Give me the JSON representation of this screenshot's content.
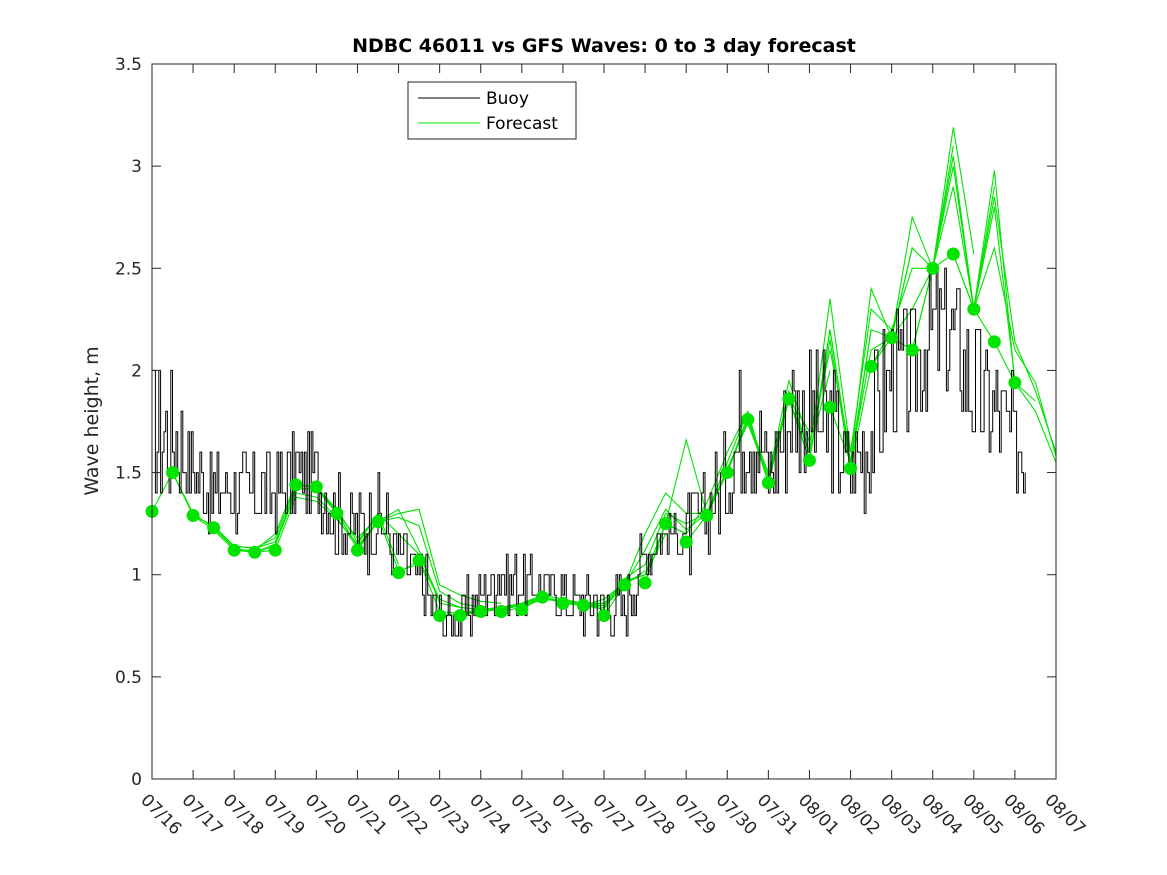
{
  "chart_data": {
    "type": "line",
    "title": "NDBC 46011 vs GFS Waves: 0 to 3 day forecast",
    "ylabel": "Wave height, m",
    "xlabel": "",
    "xlim": [
      "07/16",
      "08/07"
    ],
    "ylim": [
      0,
      3.5
    ],
    "x_tick_labels": [
      "07/16",
      "07/17",
      "07/18",
      "07/19",
      "07/20",
      "07/21",
      "07/22",
      "07/23",
      "07/24",
      "07/25",
      "07/26",
      "07/27",
      "07/28",
      "07/29",
      "07/30",
      "07/31",
      "08/01",
      "08/02",
      "08/03",
      "08/04",
      "08/05",
      "08/06",
      "08/07"
    ],
    "y_tick_labels": [
      "0",
      "0.5",
      "1",
      "1.5",
      "2",
      "2.5",
      "3",
      "3.5"
    ],
    "y_ticks": [
      0,
      0.5,
      1,
      1.5,
      2,
      2.5,
      3,
      3.5
    ],
    "grid": false,
    "legend_position": "top-left",
    "colors": {
      "buoy": "#000000",
      "forecast": "#00e400",
      "marker": "#00e400"
    },
    "legend": [
      {
        "label": "Buoy",
        "color": "#000000"
      },
      {
        "label": "Forecast",
        "color": "#00e400"
      }
    ],
    "buoy": {
      "x": [
        "07/16 00:00",
        "07/16 12:00",
        "07/17 00:00",
        "07/17 12:00",
        "07/18 00:00",
        "07/18 12:00",
        "07/19 00:00",
        "07/19 12:00",
        "07/20 00:00",
        "07/20 12:00",
        "07/21 00:00",
        "07/21 12:00",
        "07/22 00:00",
        "07/22 12:00",
        "07/23 00:00",
        "07/23 12:00",
        "07/24 00:00",
        "07/24 12:00",
        "07/25 00:00",
        "07/25 12:00",
        "07/26 00:00",
        "07/26 12:00",
        "07/27 00:00",
        "07/27 12:00",
        "07/28 00:00",
        "07/28 12:00",
        "07/29 00:00",
        "07/29 12:00",
        "07/30 00:00",
        "07/30 12:00",
        "07/31 00:00",
        "07/31 12:00",
        "08/01 00:00",
        "08/01 12:00",
        "08/02 00:00",
        "08/02 12:00",
        "08/03 00:00",
        "08/03 12:00",
        "08/04 00:00",
        "08/04 12:00",
        "08/05 00:00",
        "08/05 12:00",
        "08/06 00:00",
        "08/06 06:00"
      ],
      "values": [
        1.7,
        1.7,
        1.5,
        1.4,
        1.4,
        1.4,
        1.4,
        1.5,
        1.5,
        1.3,
        1.2,
        1.3,
        1.1,
        1.0,
        0.8,
        0.8,
        0.9,
        1.0,
        0.95,
        0.95,
        0.9,
        0.85,
        0.85,
        0.85,
        1.1,
        1.2,
        1.2,
        1.3,
        1.5,
        1.8,
        1.5,
        1.8,
        1.8,
        1.7,
        1.5,
        1.7,
        2.0,
        2.0,
        2.2,
        2.2,
        1.9,
        1.8,
        1.6,
        1.6
      ]
    },
    "forecast_series": [
      {
        "x": [
          "07/16 00:00",
          "07/16 12:00",
          "07/17 00:00",
          "07/17 12:00",
          "07/18 00:00",
          "07/18 12:00",
          "07/19 00:00"
        ],
        "values": [
          1.31,
          1.5,
          1.29,
          1.22,
          1.12,
          1.11,
          1.12
        ]
      },
      {
        "x": [
          "07/16 12:00",
          "07/17 00:00",
          "07/17 12:00",
          "07/18 00:00",
          "07/18 12:00",
          "07/19 00:00",
          "07/19 12:00"
        ],
        "values": [
          1.5,
          1.3,
          1.23,
          1.13,
          1.11,
          1.14,
          1.43
        ]
      },
      {
        "x": [
          "07/17 00:00",
          "07/17 12:00",
          "07/18 00:00",
          "07/18 12:00",
          "07/19 00:00",
          "07/19 12:00",
          "07/20 00:00"
        ],
        "values": [
          1.29,
          1.24,
          1.14,
          1.13,
          1.16,
          1.42,
          1.42
        ]
      },
      {
        "x": [
          "07/17 12:00",
          "07/18 00:00",
          "07/18 12:00",
          "07/19 00:00",
          "07/19 12:00",
          "07/20 00:00",
          "07/20 12:00"
        ],
        "values": [
          1.23,
          1.14,
          1.13,
          1.18,
          1.44,
          1.43,
          1.31
        ]
      },
      {
        "x": [
          "07/18 00:00",
          "07/18 12:00",
          "07/19 00:00",
          "07/19 12:00",
          "07/20 00:00",
          "07/20 12:00",
          "07/21 00:00"
        ],
        "values": [
          1.12,
          1.12,
          1.2,
          1.45,
          1.42,
          1.3,
          1.14
        ]
      },
      {
        "x": [
          "07/18 12:00",
          "07/19 00:00",
          "07/19 12:00",
          "07/20 00:00",
          "07/20 12:00",
          "07/21 00:00",
          "07/21 12:00"
        ],
        "values": [
          1.11,
          1.15,
          1.4,
          1.38,
          1.28,
          1.13,
          1.27
        ]
      },
      {
        "x": [
          "07/19 00:00",
          "07/19 12:00",
          "07/20 00:00",
          "07/20 12:00",
          "07/21 00:00",
          "07/21 12:00",
          "07/22 00:00"
        ],
        "values": [
          1.12,
          1.38,
          1.36,
          1.27,
          1.15,
          1.3,
          1.05
        ]
      },
      {
        "x": [
          "07/19 12:00",
          "07/20 00:00",
          "07/20 12:00",
          "07/21 00:00",
          "07/21 12:00",
          "07/22 00:00",
          "07/22 12:00"
        ],
        "values": [
          1.44,
          1.43,
          1.3,
          1.18,
          1.28,
          1.02,
          1.05
        ]
      },
      {
        "x": [
          "07/20 00:00",
          "07/20 12:00",
          "07/21 00:00",
          "07/21 12:00",
          "07/22 00:00",
          "07/22 12:00",
          "07/23 00:00"
        ],
        "values": [
          1.43,
          1.32,
          1.16,
          1.3,
          1.2,
          1.1,
          0.88
        ]
      },
      {
        "x": [
          "07/20 12:00",
          "07/21 00:00",
          "07/21 12:00",
          "07/22 00:00",
          "07/22 12:00",
          "07/23 00:00",
          "07/23 12:00"
        ],
        "values": [
          1.3,
          1.14,
          1.26,
          1.32,
          1.12,
          0.86,
          0.84
        ]
      },
      {
        "x": [
          "07/21 00:00",
          "07/21 12:00",
          "07/22 00:00",
          "07/22 12:00",
          "07/23 00:00",
          "07/23 12:00",
          "07/24 00:00"
        ],
        "values": [
          1.12,
          1.26,
          1.28,
          1.24,
          0.92,
          0.86,
          0.84
        ]
      },
      {
        "x": [
          "07/21 12:00",
          "07/22 00:00",
          "07/22 12:00",
          "07/23 00:00",
          "07/23 12:00",
          "07/24 00:00",
          "07/24 12:00"
        ],
        "values": [
          1.26,
          1.3,
          1.32,
          0.95,
          0.9,
          0.87,
          0.86
        ]
      },
      {
        "x": [
          "07/22 00:00",
          "07/22 12:00",
          "07/23 00:00",
          "07/23 12:00",
          "07/24 00:00",
          "07/24 12:00",
          "07/25 00:00"
        ],
        "values": [
          1.01,
          1.07,
          0.88,
          0.84,
          0.83,
          0.84,
          0.85
        ]
      },
      {
        "x": [
          "07/22 12:00",
          "07/23 00:00",
          "07/23 12:00",
          "07/24 00:00",
          "07/24 12:00",
          "07/25 00:00",
          "07/25 12:00"
        ],
        "values": [
          1.07,
          0.82,
          0.81,
          0.82,
          0.83,
          0.85,
          0.88
        ]
      },
      {
        "x": [
          "07/23 00:00",
          "07/23 12:00",
          "07/24 00:00",
          "07/24 12:00",
          "07/25 00:00",
          "07/25 12:00",
          "07/26 00:00"
        ],
        "values": [
          0.8,
          0.81,
          0.83,
          0.84,
          0.86,
          0.89,
          0.87
        ]
      },
      {
        "x": [
          "07/23 12:00",
          "07/24 00:00",
          "07/24 12:00",
          "07/25 00:00",
          "07/25 12:00",
          "07/26 00:00",
          "07/26 12:00"
        ],
        "values": [
          0.8,
          0.82,
          0.84,
          0.86,
          0.9,
          0.88,
          0.86
        ]
      },
      {
        "x": [
          "07/24 00:00",
          "07/24 12:00",
          "07/25 00:00",
          "07/25 12:00",
          "07/26 00:00",
          "07/26 12:00",
          "07/27 00:00"
        ],
        "values": [
          0.82,
          0.83,
          0.85,
          0.89,
          0.87,
          0.86,
          0.86
        ]
      },
      {
        "x": [
          "07/24 12:00",
          "07/25 00:00",
          "07/25 12:00",
          "07/26 00:00",
          "07/26 12:00",
          "07/27 00:00",
          "07/27 12:00"
        ],
        "values": [
          0.82,
          0.84,
          0.88,
          0.87,
          0.85,
          0.88,
          0.96
        ]
      },
      {
        "x": [
          "07/25 00:00",
          "07/25 12:00",
          "07/26 00:00",
          "07/26 12:00",
          "07/27 00:00",
          "07/27 12:00",
          "07/28 00:00"
        ],
        "values": [
          0.83,
          0.89,
          0.87,
          0.85,
          0.84,
          0.95,
          1.02
        ]
      },
      {
        "x": [
          "07/25 12:00",
          "07/26 00:00",
          "07/26 12:00",
          "07/27 00:00",
          "07/27 12:00",
          "07/28 00:00",
          "07/28 12:00"
        ],
        "values": [
          0.89,
          0.86,
          0.85,
          0.86,
          0.97,
          1.0,
          1.2
        ]
      },
      {
        "x": [
          "07/26 00:00",
          "07/26 12:00",
          "07/27 00:00",
          "07/27 12:00",
          "07/28 00:00",
          "07/28 12:00",
          "07/29 00:00"
        ],
        "values": [
          0.86,
          0.85,
          0.85,
          0.96,
          1.0,
          1.25,
          1.2
        ]
      },
      {
        "x": [
          "07/26 12:00",
          "07/27 00:00",
          "07/27 12:00",
          "07/28 00:00",
          "07/28 12:00",
          "07/29 00:00",
          "07/29 12:00"
        ],
        "values": [
          0.85,
          0.83,
          0.98,
          1.05,
          1.3,
          1.25,
          1.3
        ]
      },
      {
        "x": [
          "07/27 00:00",
          "07/27 12:00",
          "07/28 00:00",
          "07/28 12:00",
          "07/29 00:00",
          "07/29 12:00",
          "07/30 00:00"
        ],
        "values": [
          0.8,
          0.95,
          1.12,
          1.32,
          1.22,
          1.3,
          1.5
        ]
      },
      {
        "x": [
          "07/27 12:00",
          "07/28 00:00",
          "07/28 12:00",
          "07/29 00:00",
          "07/29 12:00",
          "07/30 00:00",
          "07/30 12:00"
        ],
        "values": [
          0.95,
          1.2,
          1.4,
          1.3,
          1.3,
          1.55,
          1.8
        ]
      },
      {
        "x": [
          "07/28 00:00",
          "07/28 12:00",
          "07/29 00:00",
          "07/29 12:00",
          "07/30 00:00",
          "07/30 12:00",
          "07/31 00:00"
        ],
        "values": [
          0.96,
          1.25,
          1.66,
          1.3,
          1.5,
          1.76,
          1.5
        ]
      },
      {
        "x": [
          "07/28 12:00",
          "07/29 00:00",
          "07/29 12:00",
          "07/30 00:00",
          "07/30 12:00",
          "07/31 00:00",
          "07/31 12:00"
        ],
        "values": [
          1.25,
          1.2,
          1.35,
          1.6,
          1.8,
          1.45,
          1.9
        ]
      },
      {
        "x": [
          "07/29 00:00",
          "07/29 12:00",
          "07/30 00:00",
          "07/30 12:00",
          "07/31 00:00",
          "07/31 12:00",
          "08/01 00:00"
        ],
        "values": [
          1.16,
          1.29,
          1.52,
          1.74,
          1.48,
          1.86,
          1.7
        ]
      },
      {
        "x": [
          "07/29 12:00",
          "07/30 00:00",
          "07/30 12:00",
          "07/31 00:00",
          "07/31 12:00",
          "08/01 00:00",
          "08/01 12:00"
        ],
        "values": [
          1.29,
          1.5,
          1.78,
          1.45,
          1.9,
          1.6,
          2.0
        ]
      },
      {
        "x": [
          "07/30 00:00",
          "07/30 12:00",
          "07/31 00:00",
          "07/31 12:00",
          "08/01 00:00",
          "08/01 12:00",
          "08/02 00:00"
        ],
        "values": [
          1.5,
          1.76,
          1.48,
          1.95,
          1.65,
          2.1,
          1.6
        ]
      },
      {
        "x": [
          "07/30 12:00",
          "07/31 00:00",
          "07/31 12:00",
          "08/01 00:00",
          "08/01 12:00",
          "08/02 00:00",
          "08/02 12:00"
        ],
        "values": [
          1.76,
          1.45,
          1.86,
          1.56,
          2.2,
          1.55,
          2.2
        ]
      },
      {
        "x": [
          "07/31 00:00",
          "07/31 12:00",
          "08/01 00:00",
          "08/01 12:00",
          "08/02 00:00",
          "08/02 12:00",
          "08/03 00:00"
        ],
        "values": [
          1.45,
          1.86,
          1.6,
          2.35,
          1.6,
          2.3,
          2.2
        ]
      },
      {
        "x": [
          "07/31 12:00",
          "08/01 00:00",
          "08/01 12:00",
          "08/02 00:00",
          "08/02 12:00",
          "08/03 00:00",
          "08/03 12:00"
        ],
        "values": [
          1.86,
          1.56,
          2.2,
          1.55,
          2.4,
          2.16,
          2.6
        ]
      },
      {
        "x": [
          "08/01 00:00",
          "08/01 12:00",
          "08/02 00:00",
          "08/02 12:00",
          "08/03 00:00",
          "08/03 12:00",
          "08/04 00:00"
        ],
        "values": [
          1.56,
          2.15,
          1.52,
          2.2,
          2.16,
          2.75,
          2.5
        ]
      },
      {
        "x": [
          "08/01 12:00",
          "08/02 00:00",
          "08/02 12:00",
          "08/03 00:00",
          "08/03 12:00",
          "08/04 00:00",
          "08/04 12:00"
        ],
        "values": [
          1.82,
          1.55,
          2.1,
          2.16,
          2.6,
          2.5,
          3.1
        ]
      },
      {
        "x": [
          "08/02 00:00",
          "08/02 12:00",
          "08/03 00:00",
          "08/03 12:00",
          "08/04 00:00",
          "08/04 12:00",
          "08/05 00:00"
        ],
        "values": [
          1.52,
          2.02,
          2.2,
          2.5,
          2.5,
          3.19,
          2.57
        ]
      },
      {
        "x": [
          "08/02 12:00",
          "08/03 00:00",
          "08/03 12:00",
          "08/04 00:00",
          "08/04 12:00",
          "08/05 00:00",
          "08/05 12:00"
        ],
        "values": [
          2.02,
          2.16,
          2.3,
          2.5,
          3.0,
          2.3,
          2.9
        ]
      },
      {
        "x": [
          "08/03 00:00",
          "08/03 12:00",
          "08/04 00:00",
          "08/04 12:00",
          "08/05 00:00",
          "08/05 12:00",
          "08/06 00:00"
        ],
        "values": [
          2.16,
          2.1,
          2.5,
          3.05,
          2.3,
          2.8,
          1.95
        ]
      },
      {
        "x": [
          "08/03 12:00",
          "08/04 00:00",
          "08/04 12:00",
          "08/05 00:00",
          "08/05 12:00",
          "08/06 00:00",
          "08/06 12:00"
        ],
        "values": [
          2.1,
          2.5,
          2.9,
          2.3,
          2.98,
          1.94,
          1.85
        ]
      },
      {
        "x": [
          "08/04 00:00",
          "08/04 12:00",
          "08/05 00:00",
          "08/05 12:00",
          "08/06 00:00",
          "08/06 12:00",
          "08/07 00:00"
        ],
        "values": [
          2.5,
          2.57,
          2.3,
          2.85,
          2.14,
          1.9,
          1.6
        ]
      },
      {
        "x": [
          "08/04 12:00",
          "08/05 00:00",
          "08/05 12:00",
          "08/06 00:00",
          "08/06 12:00",
          "08/07 00:00"
        ],
        "values": [
          2.57,
          2.3,
          2.6,
          2.1,
          1.94,
          1.58
        ]
      },
      {
        "x": [
          "08/05 00:00",
          "08/05 12:00",
          "08/06 00:00",
          "08/06 12:00",
          "08/07 00:00"
        ],
        "values": [
          2.3,
          2.14,
          1.94,
          1.8,
          1.55
        ]
      }
    ],
    "markers": {
      "x": [
        "07/16 00:00",
        "07/16 12:00",
        "07/17 00:00",
        "07/17 12:00",
        "07/18 00:00",
        "07/18 12:00",
        "07/19 00:00",
        "07/19 12:00",
        "07/20 00:00",
        "07/20 12:00",
        "07/21 00:00",
        "07/21 12:00",
        "07/22 00:00",
        "07/22 12:00",
        "07/23 00:00",
        "07/23 12:00",
        "07/24 00:00",
        "07/24 12:00",
        "07/25 00:00",
        "07/25 12:00",
        "07/26 00:00",
        "07/26 12:00",
        "07/27 00:00",
        "07/27 12:00",
        "07/28 00:00",
        "07/28 12:00",
        "07/29 00:00",
        "07/29 12:00",
        "07/30 00:00",
        "07/30 12:00",
        "07/31 00:00",
        "07/31 12:00",
        "08/01 00:00",
        "08/01 12:00",
        "08/02 00:00",
        "08/02 12:00",
        "08/03 00:00",
        "08/03 12:00",
        "08/04 00:00",
        "08/04 12:00",
        "08/05 00:00",
        "08/05 12:00",
        "08/06 00:00"
      ],
      "values": [
        1.31,
        1.5,
        1.29,
        1.23,
        1.12,
        1.11,
        1.12,
        1.44,
        1.43,
        1.3,
        1.12,
        1.26,
        1.01,
        1.07,
        0.8,
        0.8,
        0.82,
        0.82,
        0.83,
        0.89,
        0.86,
        0.85,
        0.8,
        0.95,
        0.96,
        1.25,
        1.16,
        1.29,
        1.5,
        1.76,
        1.45,
        1.86,
        1.56,
        1.82,
        1.52,
        2.02,
        2.16,
        2.1,
        2.5,
        2.57,
        2.3,
        2.14,
        1.94
      ]
    }
  }
}
